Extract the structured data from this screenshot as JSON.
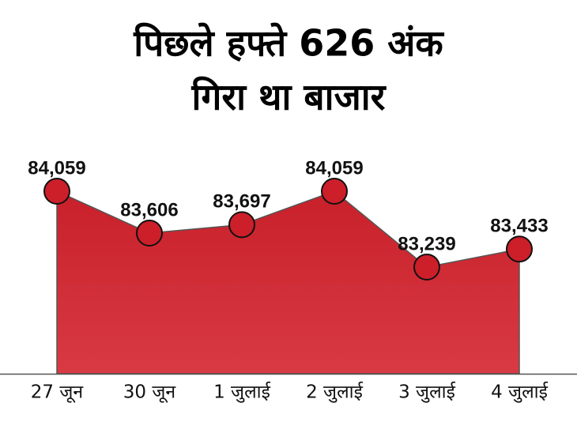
{
  "chart_data": {
    "type": "area",
    "title": [
      "पिछले हफ्ते 626 अंक",
      "गिरा था बाजार"
    ],
    "categories": [
      "27 जून",
      "30 जून",
      "1 जुलाई",
      "2 जुलाई",
      "3 जुलाई",
      "4 जुलाई"
    ],
    "values": [
      84059,
      83606,
      83697,
      84059,
      83239,
      83433
    ],
    "value_labels": [
      "84,059",
      "83,606",
      "83,697",
      "84,059",
      "83,239",
      "83,433"
    ],
    "color": "#cc1f2a"
  }
}
